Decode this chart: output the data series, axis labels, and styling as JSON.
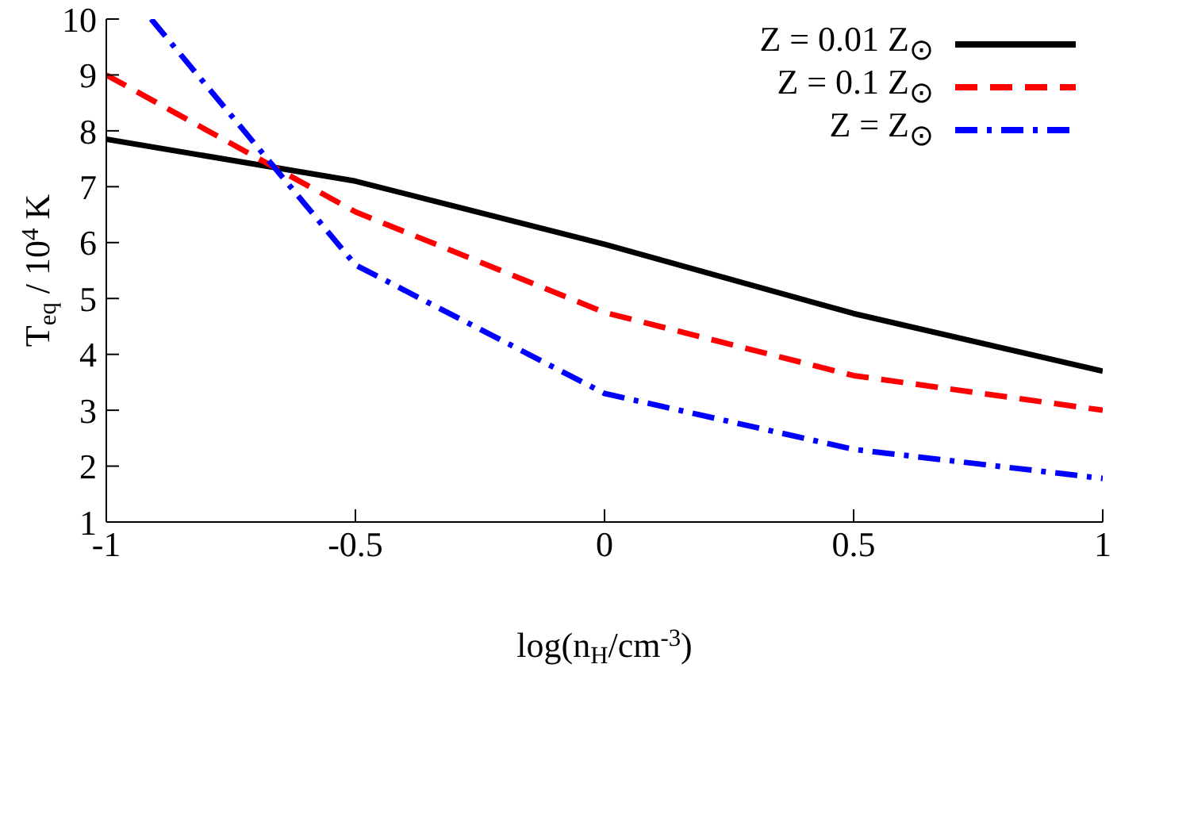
{
  "chart_data": {
    "type": "line",
    "xlabel": "log(n$_{H}$/cm$^{-3}$)",
    "ylabel": "T$_{eq}$ / 10$^{4}$ K",
    "x": [
      -1,
      -0.5,
      0,
      0.5,
      1
    ],
    "series": [
      {
        "name": "Z = 0.01 Z$_{⊙}$",
        "color": "#000000",
        "line_style": "solid",
        "values": [
          7.85,
          7.1,
          5.97,
          4.73,
          3.7
        ]
      },
      {
        "name": "Z = 0.1 Z$_{⊙}$",
        "color": "#ff0000",
        "line_style": "dashed",
        "values": [
          9.0,
          6.55,
          4.75,
          3.62,
          3.0
        ]
      },
      {
        "name": "Z = Z$_{⊙}$",
        "color": "#0000ff",
        "line_style": "dashdot",
        "x": [
          -0.91,
          -0.5,
          0,
          0.5,
          1
        ],
        "values": [
          10,
          5.6,
          3.3,
          2.3,
          1.78
        ]
      }
    ],
    "xlim": [
      -1,
      1
    ],
    "xticks": [
      -1,
      -0.5,
      0,
      0.5,
      1
    ],
    "ylim": [
      1,
      10
    ],
    "yticks": [
      1,
      2,
      3,
      4,
      5,
      6,
      7,
      8,
      9,
      10
    ],
    "grid": false,
    "legend": "top right",
    "marker": "none"
  }
}
